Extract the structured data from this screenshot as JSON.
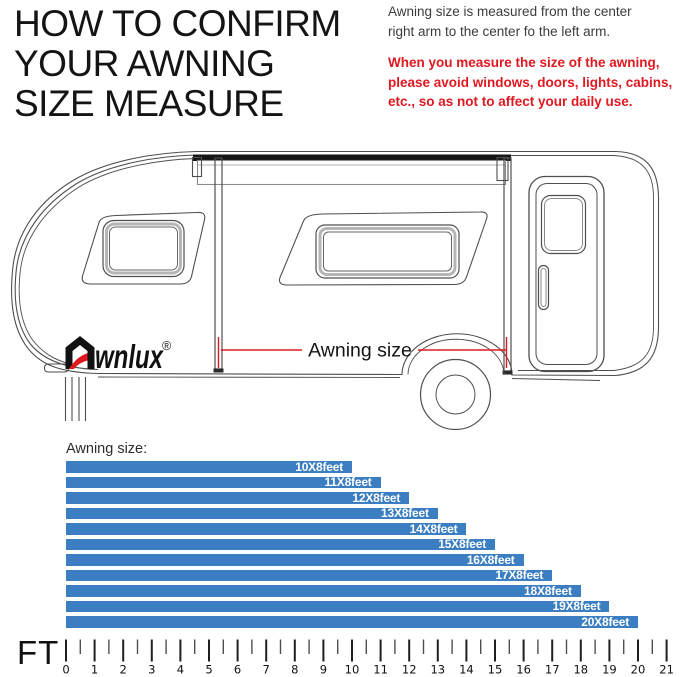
{
  "header": {
    "title_lines": [
      "HOW TO CONFIRM",
      "YOUR AWNING",
      "SIZE MEASURE"
    ],
    "note_lines": [
      "Awning size is measured from the center",
      "right arm to the center fo the left arm."
    ],
    "warning_lines": [
      "When you measure the size of the awning,",
      "please avoid windows, doors, lights, cabins,",
      "etc., so as not to affect your daily use."
    ],
    "warning_color": "#e01820"
  },
  "diagram": {
    "brand": "Awnlux",
    "brand_mark": "®",
    "measure_label": "Awning size",
    "accent_red": "#e01820",
    "line_color": "#4f4f4f"
  },
  "chart_data": {
    "type": "bar",
    "orientation": "horizontal",
    "title": "Awning size:",
    "categories": [
      "10X8feet",
      "11X8feet",
      "12X8feet",
      "13X8feet",
      "14X8feet",
      "15X8feet",
      "16X8feet",
      "17X8feet",
      "18X8feet",
      "19X8feet",
      "20X8feet"
    ],
    "values": [
      10,
      11,
      12,
      13,
      14,
      15,
      16,
      17,
      18,
      19,
      20
    ],
    "unit": "feet",
    "bar_color": "#3b7ec2",
    "label_color": "#ffffff",
    "xlabel": "FT",
    "xlim": [
      0,
      21
    ],
    "tick_step": 1,
    "minor_tick_step": 0.5,
    "ruler_numbers": [
      "0",
      "1",
      "2",
      "3",
      "4",
      "5",
      "6",
      "7",
      "8",
      "9",
      "10",
      "11",
      "12",
      "13",
      "14",
      "15",
      "16",
      "17",
      "18",
      "19",
      "20",
      "21"
    ]
  }
}
